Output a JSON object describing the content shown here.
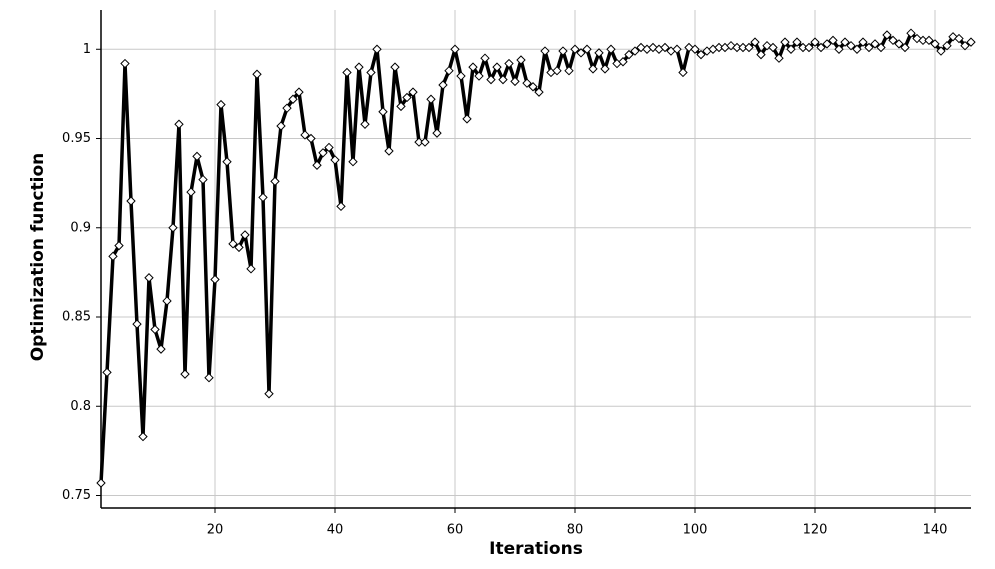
{
  "chart_data": {
    "type": "line",
    "x_label": "Iterations",
    "y_label": "Optimization function",
    "x": [
      1,
      2,
      3,
      4,
      5,
      6,
      7,
      8,
      9,
      10,
      11,
      12,
      13,
      14,
      15,
      16,
      17,
      18,
      19,
      20,
      21,
      22,
      23,
      24,
      25,
      26,
      27,
      28,
      29,
      30,
      31,
      32,
      33,
      34,
      35,
      36,
      37,
      38,
      39,
      40,
      41,
      42,
      43,
      44,
      45,
      46,
      47,
      48,
      49,
      50,
      51,
      52,
      53,
      54,
      55,
      56,
      57,
      58,
      59,
      60,
      61,
      62,
      63,
      64,
      65,
      66,
      67,
      68,
      69,
      70,
      71,
      72,
      73,
      74,
      75,
      76,
      77,
      78,
      79,
      80,
      81,
      82,
      83,
      84,
      85,
      86,
      87,
      88,
      89,
      90,
      91,
      92,
      93,
      94,
      95,
      96,
      97,
      98,
      99,
      100,
      101,
      102,
      103,
      104,
      105,
      106,
      107,
      108,
      109,
      110,
      111,
      112,
      113,
      114,
      115,
      116,
      117,
      118,
      119,
      120,
      121,
      122,
      123,
      124,
      125,
      126,
      127,
      128,
      129,
      130,
      131,
      132,
      133,
      134,
      135,
      136,
      137,
      138,
      139,
      140,
      141,
      142,
      143,
      144,
      145,
      146
    ],
    "series": [
      {
        "color": "#000000",
        "values": [
          0.757,
          0.819,
          0.884,
          0.89,
          0.992,
          0.915,
          0.846,
          0.783,
          0.872,
          0.843,
          0.832,
          0.859,
          0.9,
          0.958,
          0.818,
          0.92,
          0.94,
          0.927,
          0.816,
          0.871,
          0.969,
          0.937,
          0.891,
          0.889,
          0.896,
          0.877,
          0.986,
          0.917,
          0.807,
          0.926,
          0.957,
          0.967,
          0.972,
          0.976,
          0.952,
          0.95,
          0.935,
          0.942,
          0.945,
          0.938,
          0.912,
          0.987,
          0.937,
          0.99,
          0.958,
          0.987,
          1.0,
          0.965,
          0.943,
          0.99,
          0.968,
          0.973,
          0.976,
          0.948,
          0.948,
          0.972,
          0.953,
          0.98,
          0.988,
          1.0,
          0.985,
          0.961,
          0.99,
          0.985,
          0.995,
          0.983,
          0.99,
          0.983,
          0.992,
          0.982,
          0.994,
          0.981,
          0.979,
          0.976,
          0.999,
          0.987,
          0.988,
          0.999,
          0.988,
          1.0,
          0.998,
          1.0,
          0.989,
          0.998,
          0.989,
          1.0,
          0.992,
          0.993,
          0.997,
          0.999,
          1.001,
          1.0,
          1.001,
          1.0,
          1.001,
          0.999,
          1.0,
          0.987,
          1.001,
          1.0,
          0.997,
          0.999,
          1.0,
          1.001,
          1.001,
          1.002,
          1.001,
          1.001,
          1.001,
          1.004,
          0.997,
          1.002,
          1.001,
          0.995,
          1.004,
          1.0,
          1.004,
          1.001,
          1.001,
          1.004,
          1.001,
          1.003,
          1.005,
          1.0,
          1.004,
          1.002,
          1.0,
          1.004,
          1.001,
          1.003,
          1.001,
          1.008,
          1.005,
          1.003,
          1.001,
          1.009,
          1.006,
          1.005,
          1.005,
          1.003,
          0.999,
          1.002,
          1.007,
          1.006,
          1.002,
          1.004
        ]
      }
    ],
    "xlim": [
      1,
      146
    ],
    "xticks": [
      20,
      40,
      60,
      80,
      100,
      120,
      140
    ],
    "ylim": [
      0.743,
      1.022
    ],
    "yticks": [
      0.75,
      0.8,
      0.85,
      0.9,
      0.95,
      1
    ],
    "grid": true,
    "marker": "diamond"
  }
}
